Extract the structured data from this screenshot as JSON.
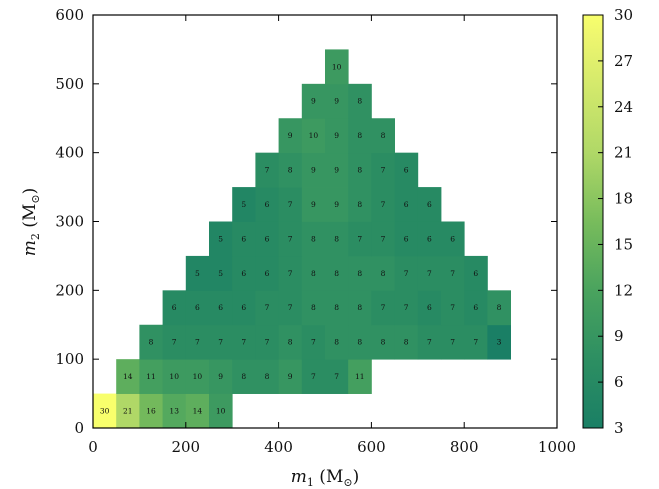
{
  "chart_data": {
    "type": "heatmap",
    "xlabel_var": "m",
    "xlabel_sub": "1",
    "xlabel_unit": " (M",
    "xlabel_unit_sub": "⊙",
    "ylabel_var": "m",
    "ylabel_sub": "2",
    "ylabel_unit": " (M",
    "ylabel_unit_sub": "⊙",
    "xlim": [
      0,
      1000
    ],
    "ylim": [
      0,
      600
    ],
    "xticks": [
      "0",
      "200",
      "400",
      "600",
      "800",
      "1000"
    ],
    "yticks": [
      "0",
      "100",
      "200",
      "300",
      "400",
      "500",
      "600"
    ],
    "colorbar": {
      "range": [
        3,
        30
      ],
      "ticks": [
        "3",
        "6",
        "9",
        "12",
        "15",
        "18",
        "21",
        "24",
        "27",
        "30"
      ],
      "colors": [
        "#1a7f65",
        "#2d8f62",
        "#4aa35e",
        "#78bc5c",
        "#b0d867",
        "#eef66f",
        "#f8ff6c"
      ]
    },
    "bin_size": 50,
    "rows": [
      {
        "y": 25,
        "cells": [
          [
            25,
            30
          ],
          [
            75,
            21
          ],
          [
            125,
            16
          ],
          [
            175,
            13
          ],
          [
            225,
            14
          ],
          [
            275,
            10
          ]
        ]
      },
      {
        "y": 75,
        "cells": [
          [
            75,
            14
          ],
          [
            125,
            11
          ],
          [
            175,
            10
          ],
          [
            225,
            10
          ],
          [
            275,
            9
          ],
          [
            325,
            8
          ],
          [
            375,
            8
          ],
          [
            425,
            9
          ],
          [
            475,
            7
          ],
          [
            525,
            7
          ],
          [
            575,
            11
          ]
        ]
      },
      {
        "y": 125,
        "cells": [
          [
            125,
            8
          ],
          [
            175,
            7
          ],
          [
            225,
            7
          ],
          [
            275,
            7
          ],
          [
            325,
            7
          ],
          [
            375,
            7
          ],
          [
            425,
            8
          ],
          [
            475,
            7
          ],
          [
            525,
            8
          ],
          [
            575,
            8
          ],
          [
            625,
            8
          ],
          [
            675,
            8
          ],
          [
            725,
            7
          ],
          [
            775,
            7
          ],
          [
            825,
            7
          ],
          [
            875,
            3
          ]
        ]
      },
      {
        "y": 175,
        "cells": [
          [
            175,
            6
          ],
          [
            225,
            6
          ],
          [
            275,
            6
          ],
          [
            325,
            6
          ],
          [
            375,
            7
          ],
          [
            425,
            7
          ],
          [
            475,
            8
          ],
          [
            525,
            8
          ],
          [
            575,
            8
          ],
          [
            625,
            7
          ],
          [
            675,
            7
          ],
          [
            725,
            6
          ],
          [
            775,
            7
          ],
          [
            825,
            6
          ],
          [
            875,
            8
          ]
        ]
      },
      {
        "y": 225,
        "cells": [
          [
            225,
            5
          ],
          [
            275,
            5
          ],
          [
            325,
            6
          ],
          [
            375,
            6
          ],
          [
            425,
            7
          ],
          [
            475,
            8
          ],
          [
            525,
            8
          ],
          [
            575,
            8
          ],
          [
            625,
            8
          ],
          [
            675,
            7
          ],
          [
            725,
            7
          ],
          [
            775,
            7
          ],
          [
            825,
            6
          ]
        ]
      },
      {
        "y": 275,
        "cells": [
          [
            275,
            5
          ],
          [
            325,
            6
          ],
          [
            375,
            6
          ],
          [
            425,
            7
          ],
          [
            475,
            8
          ],
          [
            525,
            8
          ],
          [
            575,
            7
          ],
          [
            625,
            7
          ],
          [
            675,
            6
          ],
          [
            725,
            6
          ],
          [
            775,
            6
          ]
        ]
      },
      {
        "y": 325,
        "cells": [
          [
            325,
            5
          ],
          [
            375,
            6
          ],
          [
            425,
            7
          ],
          [
            475,
            9
          ],
          [
            525,
            9
          ],
          [
            575,
            8
          ],
          [
            625,
            7
          ],
          [
            675,
            6
          ],
          [
            725,
            6
          ]
        ]
      },
      {
        "y": 375,
        "cells": [
          [
            375,
            7
          ],
          [
            425,
            8
          ],
          [
            475,
            9
          ],
          [
            525,
            9
          ],
          [
            575,
            8
          ],
          [
            625,
            7
          ],
          [
            675,
            6
          ]
        ]
      },
      {
        "y": 425,
        "cells": [
          [
            425,
            9
          ],
          [
            475,
            10
          ],
          [
            525,
            9
          ],
          [
            575,
            8
          ],
          [
            625,
            8
          ]
        ]
      },
      {
        "y": 475,
        "cells": [
          [
            475,
            9
          ],
          [
            525,
            9
          ],
          [
            575,
            8
          ]
        ]
      },
      {
        "y": 525,
        "cells": [
          [
            525,
            10
          ]
        ]
      }
    ]
  }
}
